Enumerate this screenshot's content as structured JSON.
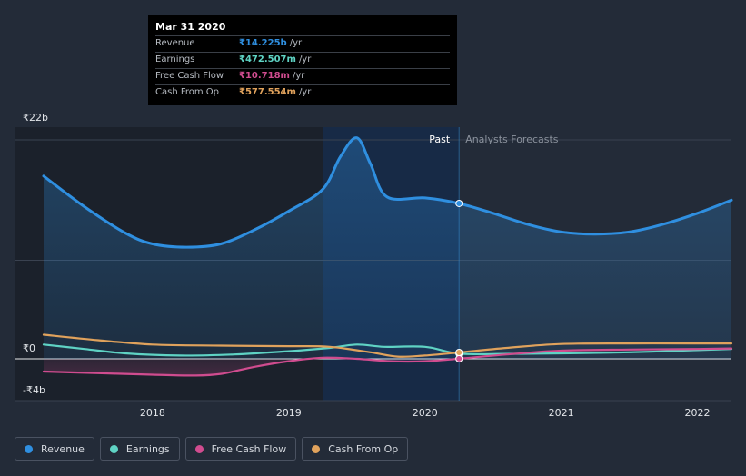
{
  "tooltip": {
    "date": "Mar 31 2020",
    "rows": [
      {
        "label": "Revenue",
        "value": "₹14.225b",
        "unit": "/yr",
        "color": "#2f8fe0"
      },
      {
        "label": "Earnings",
        "value": "₹472.507m",
        "unit": "/yr",
        "color": "#5fd3c4"
      },
      {
        "label": "Free Cash Flow",
        "value": "₹10.718m",
        "unit": "/yr",
        "color": "#d04c8f"
      },
      {
        "label": "Cash From Op",
        "value": "₹577.554m",
        "unit": "/yr",
        "color": "#e0a25c"
      }
    ]
  },
  "legend": [
    {
      "label": "Revenue",
      "color": "#2f8fe0"
    },
    {
      "label": "Earnings",
      "color": "#5fd3c4"
    },
    {
      "label": "Free Cash Flow",
      "color": "#d04c8f"
    },
    {
      "label": "Cash From Op",
      "color": "#e0a25c"
    }
  ],
  "chart_data": {
    "type": "line",
    "title": "",
    "xlabel": "",
    "ylabel": "",
    "currency": "INR",
    "ylim": [
      -4,
      22
    ],
    "xlim": [
      2017.2,
      2022.25
    ],
    "y_tick_labels": [
      {
        "value": 22,
        "label": "₹22b"
      },
      {
        "value": 0,
        "label": "₹0"
      },
      {
        "value": -4,
        "label": "-₹4b"
      }
    ],
    "x_tick_labels": [
      {
        "value": 2018,
        "label": "2018"
      },
      {
        "value": 2019,
        "label": "2019"
      },
      {
        "value": 2020,
        "label": "2020"
      },
      {
        "value": 2021,
        "label": "2021"
      },
      {
        "value": 2022,
        "label": "2022"
      }
    ],
    "past_label": "Past",
    "forecast_label": "Analysts Forecasts",
    "highlight_range": [
      2019.25,
      2020.25
    ],
    "marker_x": 2020.25,
    "series": [
      {
        "name": "Revenue",
        "color": "#2f8fe0",
        "area": true,
        "points": [
          [
            2017.2,
            16.7
          ],
          [
            2017.5,
            13.9
          ],
          [
            2017.8,
            11.5
          ],
          [
            2018.0,
            10.5
          ],
          [
            2018.25,
            10.2
          ],
          [
            2018.5,
            10.5
          ],
          [
            2018.75,
            11.8
          ],
          [
            2019.0,
            13.5
          ],
          [
            2019.25,
            15.5
          ],
          [
            2019.38,
            18.5
          ],
          [
            2019.5,
            20.2
          ],
          [
            2019.6,
            17.8
          ],
          [
            2019.72,
            14.8
          ],
          [
            2020.0,
            14.7
          ],
          [
            2020.25,
            14.2
          ],
          [
            2020.5,
            13.3
          ],
          [
            2020.75,
            12.3
          ],
          [
            2021.0,
            11.6
          ],
          [
            2021.25,
            11.4
          ],
          [
            2021.5,
            11.6
          ],
          [
            2021.75,
            12.3
          ],
          [
            2022.0,
            13.3
          ],
          [
            2022.25,
            14.5
          ]
        ]
      },
      {
        "name": "Earnings",
        "color": "#5fd3c4",
        "points": [
          [
            2017.2,
            1.3
          ],
          [
            2017.5,
            0.9
          ],
          [
            2017.8,
            0.5
          ],
          [
            2018.2,
            0.3
          ],
          [
            2018.6,
            0.4
          ],
          [
            2019.0,
            0.7
          ],
          [
            2019.3,
            1.0
          ],
          [
            2019.5,
            1.3
          ],
          [
            2019.7,
            1.1
          ],
          [
            2020.0,
            1.1
          ],
          [
            2020.25,
            0.47
          ],
          [
            2020.6,
            0.45
          ],
          [
            2021.0,
            0.5
          ],
          [
            2021.5,
            0.6
          ],
          [
            2022.0,
            0.8
          ],
          [
            2022.25,
            0.9
          ]
        ]
      },
      {
        "name": "Free Cash Flow",
        "color": "#d04c8f",
        "points": [
          [
            2017.2,
            -1.6
          ],
          [
            2017.6,
            -1.8
          ],
          [
            2018.0,
            -2.0
          ],
          [
            2018.3,
            -2.1
          ],
          [
            2018.5,
            -1.9
          ],
          [
            2018.75,
            -1.0
          ],
          [
            2019.0,
            -0.3
          ],
          [
            2019.25,
            0.1
          ],
          [
            2019.5,
            0.0
          ],
          [
            2019.75,
            -0.3
          ],
          [
            2020.0,
            -0.3
          ],
          [
            2020.25,
            0.01
          ],
          [
            2020.6,
            0.4
          ],
          [
            2021.0,
            0.75
          ],
          [
            2021.5,
            0.85
          ],
          [
            2022.0,
            0.9
          ],
          [
            2022.25,
            0.95
          ]
        ]
      },
      {
        "name": "Cash From Op",
        "color": "#e0a25c",
        "points": [
          [
            2017.2,
            2.2
          ],
          [
            2017.6,
            1.7
          ],
          [
            2018.0,
            1.3
          ],
          [
            2018.5,
            1.2
          ],
          [
            2019.0,
            1.15
          ],
          [
            2019.3,
            1.1
          ],
          [
            2019.6,
            0.6
          ],
          [
            2019.8,
            0.2
          ],
          [
            2020.0,
            0.3
          ],
          [
            2020.25,
            0.58
          ],
          [
            2020.6,
            1.0
          ],
          [
            2021.0,
            1.35
          ],
          [
            2021.5,
            1.4
          ],
          [
            2022.0,
            1.4
          ],
          [
            2022.25,
            1.4
          ]
        ]
      }
    ]
  }
}
